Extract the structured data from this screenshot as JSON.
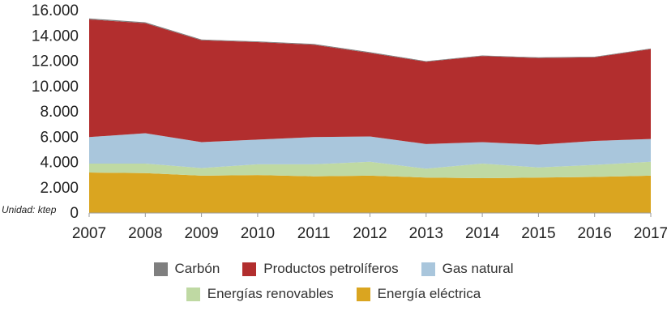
{
  "chart_data": {
    "type": "area",
    "stacked": true,
    "unit_label": "Unidad: ktep",
    "x": [
      "2007",
      "2008",
      "2009",
      "2010",
      "2011",
      "2012",
      "2013",
      "2014",
      "2015",
      "2016",
      "2017"
    ],
    "y_ticks": [
      "16.000",
      "14.000",
      "12.000",
      "10.000",
      "8.000",
      "6.000",
      "4.000",
      "2.000",
      "0"
    ],
    "ylim": [
      0,
      16000
    ],
    "series": [
      {
        "name": "Energía eléctrica",
        "color": "#DAA520",
        "values": [
          3200,
          3150,
          2950,
          3000,
          2900,
          2950,
          2800,
          2750,
          2800,
          2850,
          2950
        ]
      },
      {
        "name": "Energías renovables",
        "color": "#BFD9A3",
        "values": [
          700,
          750,
          600,
          850,
          950,
          1100,
          700,
          1150,
          800,
          950,
          1100
        ]
      },
      {
        "name": "Gas natural",
        "color": "#A9C6DC",
        "values": [
          2100,
          2400,
          2050,
          1950,
          2150,
          2000,
          1950,
          1700,
          1800,
          1900,
          1800
        ]
      },
      {
        "name": "Productos petrolíferos",
        "color": "#B22E2E",
        "values": [
          9300,
          8700,
          8050,
          7700,
          7300,
          6600,
          6500,
          6800,
          6850,
          6600,
          7100
        ]
      },
      {
        "name": "Carbón",
        "color": "#7F7F7F",
        "values": [
          80,
          70,
          60,
          60,
          60,
          60,
          50,
          50,
          50,
          50,
          50
        ]
      }
    ],
    "legend": {
      "row1": [
        "Carbón",
        "Productos petrolíferos",
        "Gas natural"
      ],
      "row2": [
        "Energías renovables",
        "Energía eléctrica"
      ]
    },
    "legend_colors": {
      "Carbón": "#7F7F7F",
      "Productos petrolíferos": "#B22E2E",
      "Gas natural": "#A9C6DC",
      "Energías renovables": "#BFD9A3",
      "Energía eléctrica": "#DAA520"
    }
  }
}
